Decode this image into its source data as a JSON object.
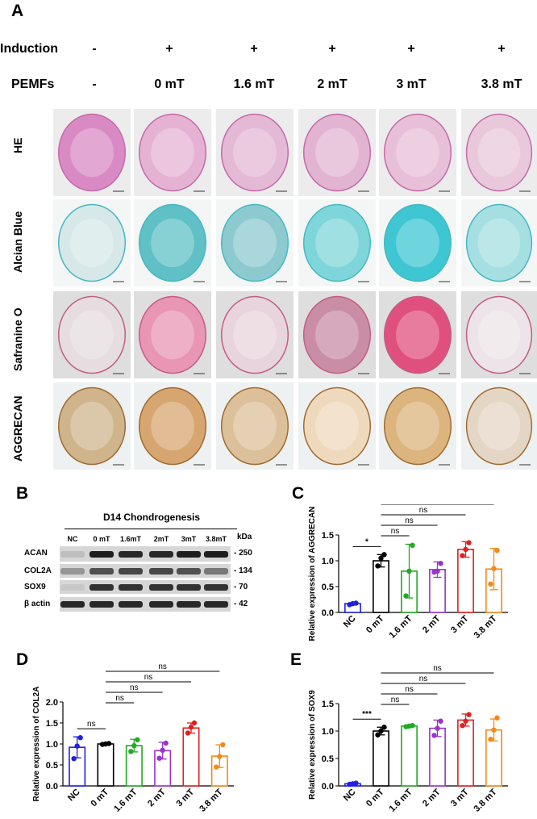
{
  "panels": {
    "A": "A",
    "B": "B",
    "C": "C",
    "D": "D",
    "E": "E"
  },
  "panelA": {
    "induction_label": "Induction",
    "pemfs_label": "PEMFs",
    "induction": [
      "-",
      "+",
      "+",
      "+",
      "+",
      "+"
    ],
    "pemfs": [
      "-",
      "0 mT",
      "1.6 mT",
      "2 mT",
      "3 mT",
      "3.8 mT"
    ],
    "rows": [
      "HE",
      "Alcian Blue",
      "Safranine O",
      "AGGRECAN"
    ]
  },
  "panelB": {
    "title": "D14 Chondrogenesis",
    "lanes": [
      "NC",
      "0 mT",
      "1.6mT",
      "2mT",
      "3mT",
      "3.8mT"
    ],
    "kda_label": "kDa",
    "bands": [
      {
        "name": "ACAN",
        "kda": "- 250"
      },
      {
        "name": "COL2A",
        "kda": "- 134"
      },
      {
        "name": "SOX9",
        "kda": "- 70"
      },
      {
        "name": "β actin",
        "kda": "- 42"
      }
    ]
  },
  "chart_data": [
    {
      "panel": "C",
      "type": "bar",
      "categories": [
        "NC",
        "0 mT",
        "1.6 mT",
        "2 mT",
        "3 mT",
        "3.8 mT"
      ],
      "values": [
        0.17,
        1.0,
        0.8,
        0.83,
        1.22,
        0.84
      ],
      "errors": [
        0.02,
        0.12,
        0.52,
        0.15,
        0.15,
        0.4
      ],
      "points": [
        [
          0.15,
          0.17,
          0.18
        ],
        [
          0.9,
          1.05,
          1.12
        ],
        [
          0.32,
          0.8,
          1.3
        ],
        [
          0.78,
          0.8,
          0.95
        ],
        [
          1.1,
          1.22,
          1.35
        ],
        [
          0.55,
          0.85,
          1.2
        ]
      ],
      "colors": [
        "#2020e0",
        "#000000",
        "#22aa22",
        "#9933cc",
        "#e02020",
        "#f08a1a"
      ],
      "ylabel": "Relative expression of AGGRECAN",
      "ylim": [
        0,
        1.5
      ],
      "yticks": [
        "0.0",
        "0.5",
        "1.0",
        "1.5"
      ],
      "sig": [
        {
          "from": 0,
          "to": 1,
          "label": "*"
        },
        {
          "from": 1,
          "to": 2,
          "label": "ns"
        },
        {
          "from": 1,
          "to": 3,
          "label": "ns"
        },
        {
          "from": 1,
          "to": 4,
          "label": "ns"
        },
        {
          "from": 1,
          "to": 5,
          "label": "ns"
        }
      ]
    },
    {
      "panel": "D",
      "type": "bar",
      "categories": [
        "NC",
        "0 mT",
        "1.6 mT",
        "2 mT",
        "3 mT",
        "3.8 mT"
      ],
      "values": [
        0.92,
        1.0,
        0.96,
        0.84,
        1.38,
        0.71
      ],
      "errors": [
        0.25,
        0.02,
        0.15,
        0.2,
        0.12,
        0.27
      ],
      "points": [
        [
          0.65,
          0.95,
          1.15
        ],
        [
          0.99,
          1.0,
          1.01
        ],
        [
          0.82,
          0.96,
          1.1
        ],
        [
          0.66,
          0.85,
          1.02
        ],
        [
          1.26,
          1.4,
          1.5
        ],
        [
          0.45,
          0.7,
          0.98
        ]
      ],
      "colors": [
        "#2020e0",
        "#000000",
        "#22aa22",
        "#9933cc",
        "#e02020",
        "#f08a1a"
      ],
      "ylabel": "Relative expression of COL2A",
      "ylim": [
        0,
        2.0
      ],
      "yticks": [
        "0.0",
        "0.5",
        "1.0",
        "1.5",
        "2.0"
      ],
      "sig": [
        {
          "from": 0,
          "to": 1,
          "label": "ns"
        },
        {
          "from": 1,
          "to": 2,
          "label": "ns"
        },
        {
          "from": 1,
          "to": 3,
          "label": "ns"
        },
        {
          "from": 1,
          "to": 4,
          "label": "ns"
        },
        {
          "from": 1,
          "to": 5,
          "label": "ns"
        }
      ]
    },
    {
      "panel": "E",
      "type": "bar",
      "categories": [
        "NC",
        "0 mT",
        "1.6 mT",
        "2 mT",
        "3 mT",
        "3.8 mT"
      ],
      "values": [
        0.04,
        1.0,
        1.09,
        1.05,
        1.2,
        1.02
      ],
      "errors": [
        0.01,
        0.07,
        0.02,
        0.15,
        0.11,
        0.2
      ],
      "points": [
        [
          0.03,
          0.04,
          0.05
        ],
        [
          0.93,
          1.0,
          1.07
        ],
        [
          1.08,
          1.09,
          1.1
        ],
        [
          0.92,
          1.05,
          1.18
        ],
        [
          1.1,
          1.18,
          1.3
        ],
        [
          0.85,
          1.02,
          1.24
        ]
      ],
      "colors": [
        "#2020e0",
        "#000000",
        "#22aa22",
        "#9933cc",
        "#e02020",
        "#f08a1a"
      ],
      "ylabel": "Relative expression of SOX9",
      "ylim": [
        0,
        1.5
      ],
      "yticks": [
        "0.0",
        "0.5",
        "1.0",
        "1.5"
      ],
      "sig": [
        {
          "from": 0,
          "to": 1,
          "label": "***"
        },
        {
          "from": 1,
          "to": 2,
          "label": "ns"
        },
        {
          "from": 1,
          "to": 3,
          "label": "ns"
        },
        {
          "from": 1,
          "to": 4,
          "label": "ns"
        },
        {
          "from": 1,
          "to": 5,
          "label": "ns"
        }
      ]
    }
  ]
}
